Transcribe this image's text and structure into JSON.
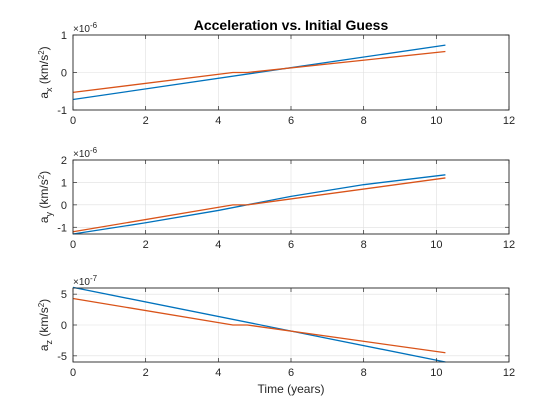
{
  "chart_data": [
    {
      "type": "line",
      "title": "Acceleration vs. Initial Guess",
      "ylabel_main": "a",
      "ylabel_sub": "x",
      "ylabel_unit": " (km/s",
      "ylabel_sup": "2",
      "ylabel_close": ")",
      "exponent_base": "×10",
      "exponent_power": "-6",
      "scale": 1e-06,
      "xlabel": "",
      "xlim": [
        0,
        12
      ],
      "ylim": [
        -1e-06,
        1e-06
      ],
      "xticks": [
        0,
        2,
        4,
        6,
        8,
        10,
        12
      ],
      "yticks": [
        -1e-06,
        0,
        1e-06
      ],
      "ytick_labels": [
        "-1",
        "0",
        "1"
      ],
      "grid": true,
      "series": [
        {
          "color": "#0072BD",
          "x": [
            0,
            10.25
          ],
          "y": [
            -7.2e-07,
            7.3e-07
          ]
        },
        {
          "color": "#D95319",
          "x": [
            0,
            4.4,
            4.8,
            10.25
          ],
          "y": [
            -5.3e-07,
            0.0,
            0.0,
            5.6e-07
          ]
        }
      ]
    },
    {
      "type": "line",
      "title": "",
      "ylabel_main": "a",
      "ylabel_sub": "y",
      "ylabel_unit": " (km/s",
      "ylabel_sup": "2",
      "ylabel_close": ")",
      "exponent_base": "×10",
      "exponent_power": "-6",
      "scale": 1e-06,
      "xlabel": "",
      "xlim": [
        0,
        12
      ],
      "ylim": [
        -1.3e-06,
        2e-06
      ],
      "xticks": [
        0,
        2,
        4,
        6,
        8,
        10,
        12
      ],
      "yticks": [
        -1e-06,
        0,
        1e-06,
        2e-06
      ],
      "ytick_labels": [
        "-1",
        "0",
        "1",
        "2"
      ],
      "grid": true,
      "series": [
        {
          "color": "#0072BD",
          "x": [
            0,
            2,
            4,
            6,
            8,
            10.25
          ],
          "y": [
            -1.3e-06,
            -8e-07,
            -2.5e-07,
            3.8e-07,
            9e-07,
            1.34e-06
          ]
        },
        {
          "color": "#D95319",
          "x": [
            0,
            4.4,
            4.8,
            10.25
          ],
          "y": [
            -1.2e-06,
            0.0,
            0.0,
            1.2e-06
          ]
        }
      ]
    },
    {
      "type": "line",
      "title": "",
      "ylabel_main": "a",
      "ylabel_sub": "z",
      "ylabel_unit": " (km/s",
      "ylabel_sup": "2",
      "ylabel_close": ")",
      "exponent_base": "×10",
      "exponent_power": "-7",
      "scale": 1e-07,
      "xlabel": "Time (years)",
      "xlim": [
        0,
        12
      ],
      "ylim": [
        -6e-07,
        6e-07
      ],
      "xticks": [
        0,
        2,
        4,
        6,
        8,
        10,
        12
      ],
      "yticks": [
        -5e-07,
        0,
        5e-07
      ],
      "ytick_labels": [
        "-5",
        "0",
        "5"
      ],
      "grid": true,
      "series": [
        {
          "color": "#0072BD",
          "x": [
            0,
            10.25
          ],
          "y": [
            6.1e-07,
            -6e-07
          ]
        },
        {
          "color": "#D95319",
          "x": [
            0,
            4.4,
            4.8,
            10.25
          ],
          "y": [
            4.3e-07,
            0.0,
            0.0,
            -4.5e-07
          ]
        }
      ]
    }
  ]
}
